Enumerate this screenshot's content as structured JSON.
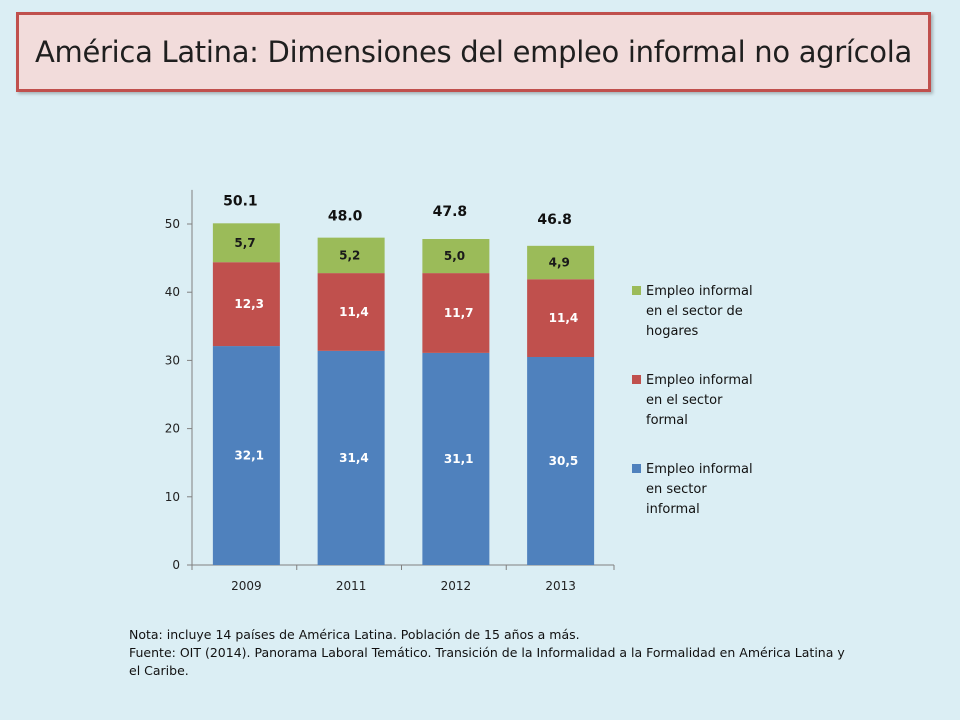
{
  "title": "América Latina: Dimensiones del empleo informal no agrícola",
  "notes": {
    "line1": "Nota: incluye 14 países de América Latina. Población de 15 años a más.",
    "line2": "Fuente: OIT (2014). Panorama Laboral Temático. Transición de la Informalidad a la Formalidad en América Latina y el Caribe."
  },
  "chart_data": {
    "type": "bar",
    "stacked": true,
    "categories": [
      "2009",
      "2011",
      "2012",
      "2013"
    ],
    "series": [
      {
        "name": "Empleo informal en sector informal",
        "values": [
          32.1,
          31.4,
          31.1,
          30.5
        ],
        "labels": [
          "32,1",
          "31,4",
          "31,1",
          "30,5"
        ],
        "color": "#4f81bd",
        "label_color": "#ffffff"
      },
      {
        "name": "Empleo informal en el sector formal",
        "values": [
          12.3,
          11.4,
          11.7,
          11.4
        ],
        "labels": [
          "12,3",
          "11,4",
          "11,7",
          "11,4"
        ],
        "color": "#c0504d",
        "label_color": "#ffffff"
      },
      {
        "name": "Empleo informal en el sector de hogares",
        "values": [
          5.7,
          5.2,
          5.0,
          4.9
        ],
        "labels": [
          "5,7",
          "5,2",
          "5,0",
          "4,9"
        ],
        "color": "#9bbb59",
        "label_color": "#1a1a1a"
      }
    ],
    "totals": [
      "50.1",
      "48.0",
      "47.8",
      "46.8"
    ],
    "legend_lines": [
      [
        "Empleo informal",
        "en el sector de",
        "hogares"
      ],
      [
        "Empleo informal",
        "en el sector",
        "formal"
      ],
      [
        "Empleo informal",
        "en sector",
        "informal"
      ]
    ],
    "ylim": [
      0,
      55
    ],
    "yticks": [
      0,
      10,
      20,
      30,
      40,
      50
    ],
    "legend_position": "right",
    "grid": false
  }
}
